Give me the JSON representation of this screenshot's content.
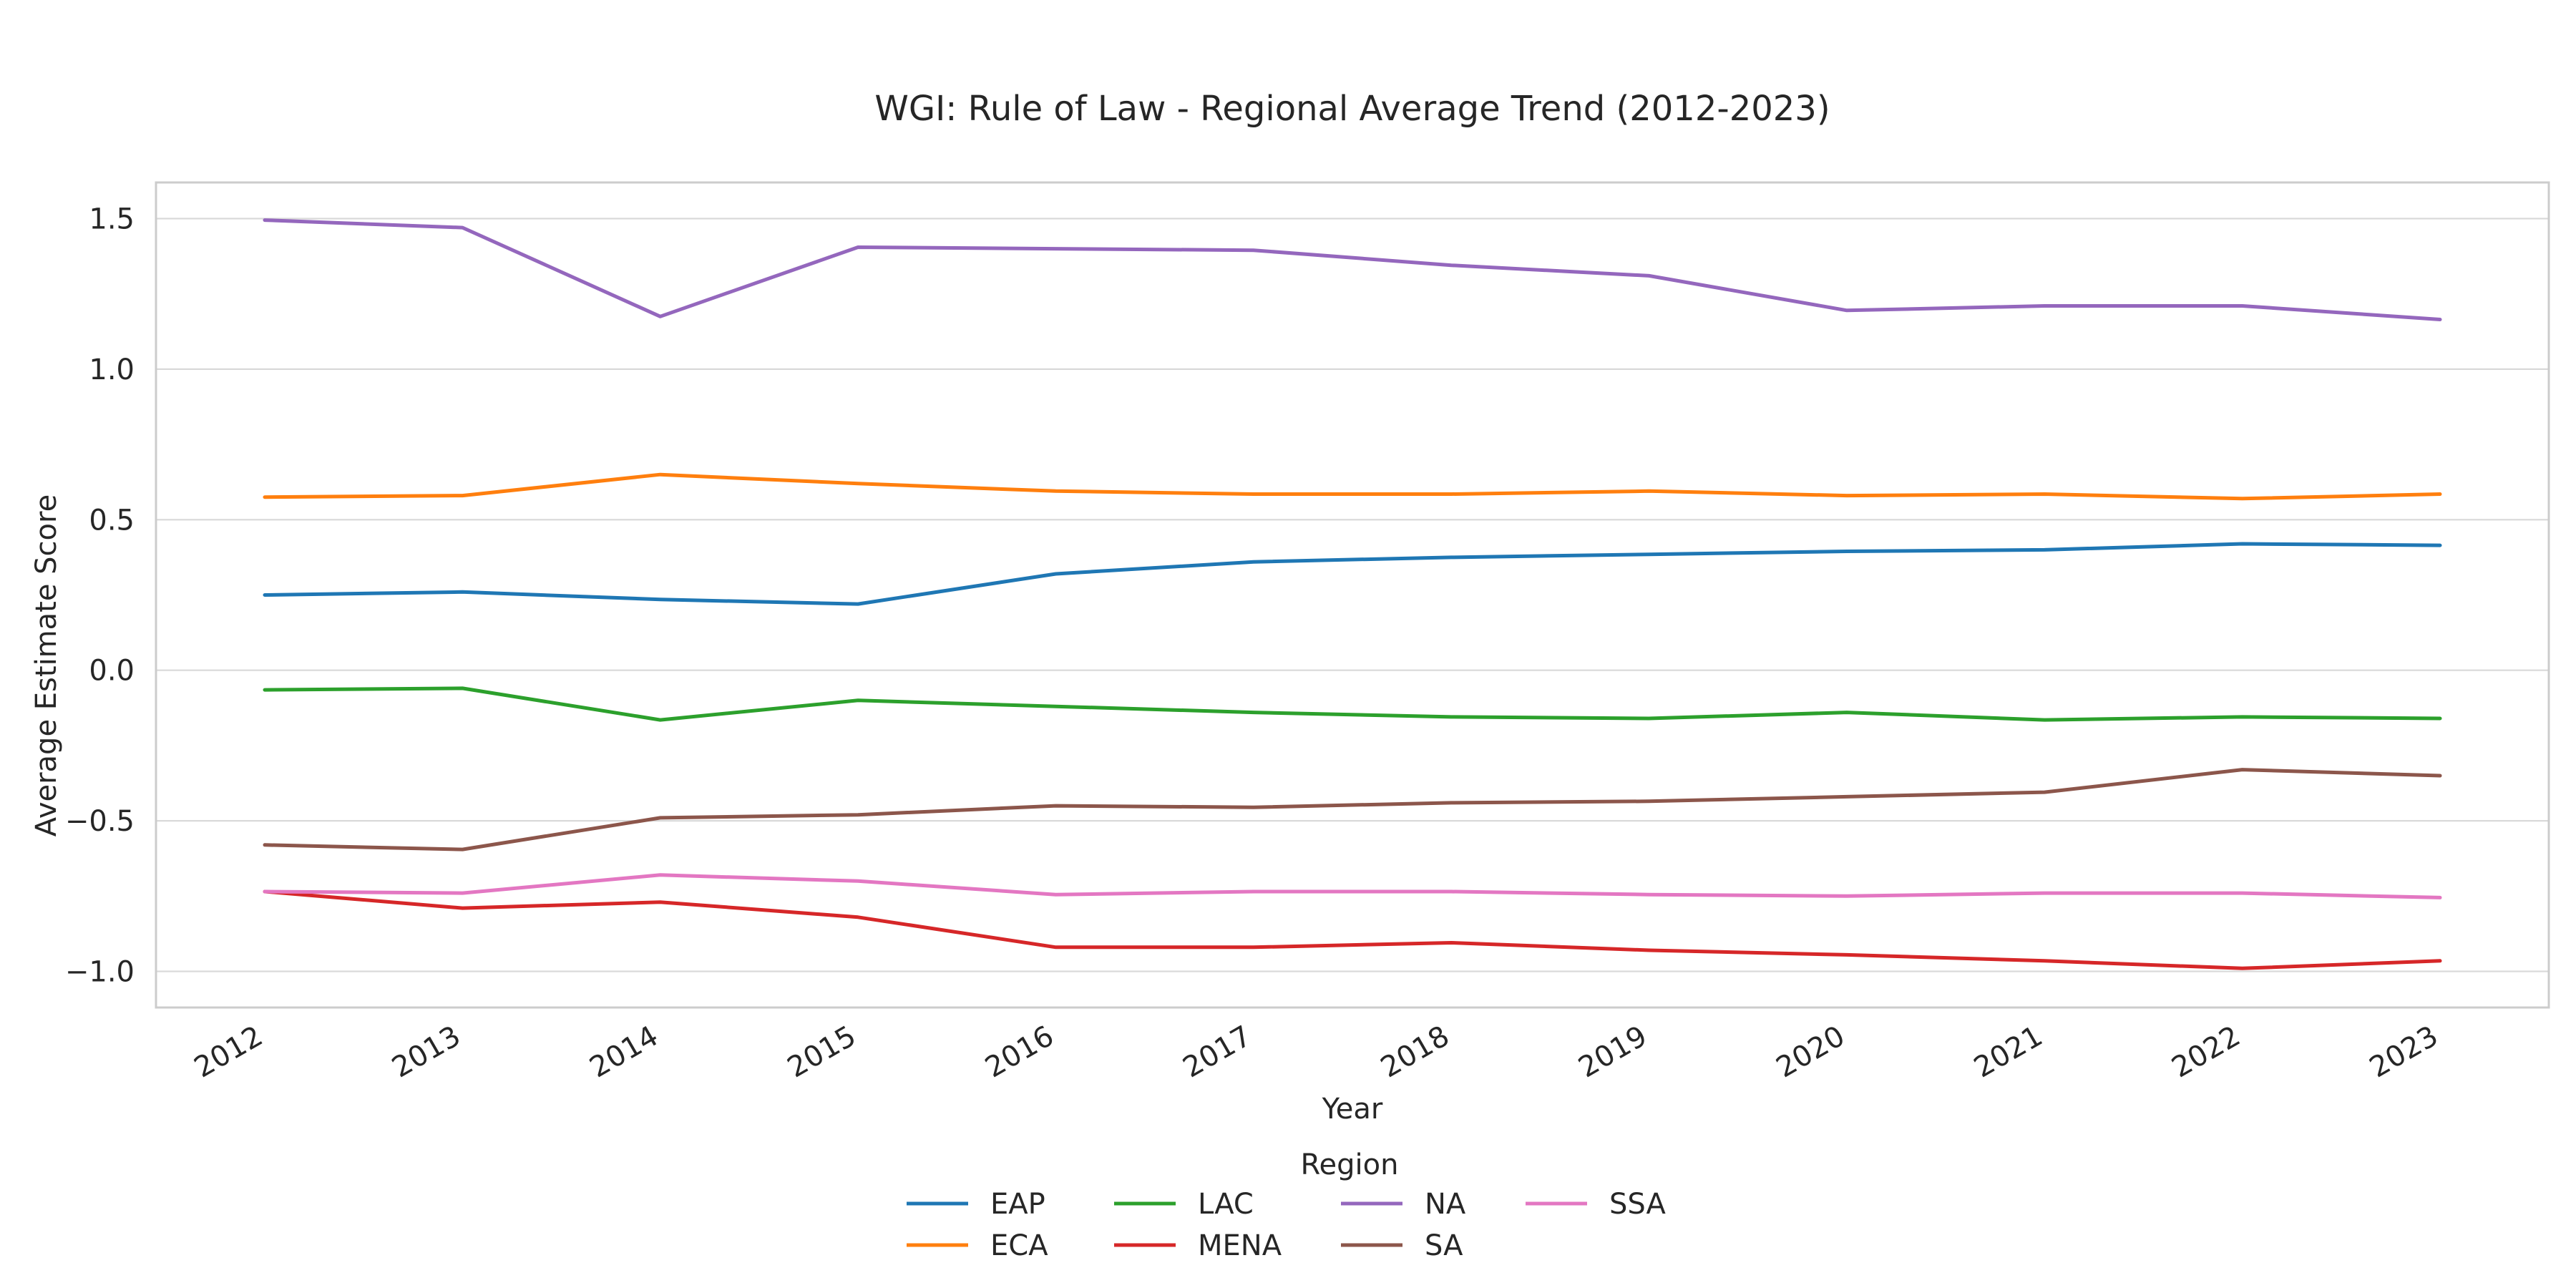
{
  "chart_data": {
    "type": "line",
    "title": "WGI: Rule of Law - Regional Average Trend (2012-2023)",
    "xlabel": "Year",
    "ylabel": "Average Estimate Score",
    "x": [
      2012,
      2013,
      2014,
      2015,
      2016,
      2017,
      2018,
      2019,
      2020,
      2021,
      2022,
      2023
    ],
    "x_tick_labels": [
      "2012",
      "2013",
      "2014",
      "2015",
      "2016",
      "2017",
      "2018",
      "2019",
      "2020",
      "2021",
      "2022",
      "2023"
    ],
    "y_ticks": [
      1.5,
      1.0,
      0.5,
      0.0,
      -0.5,
      -1.0
    ],
    "y_tick_labels": [
      "1.5",
      "1.0",
      "0.5",
      "0.0",
      "−0.5",
      "−1.0"
    ],
    "xlim": [
      2011.45,
      2023.55
    ],
    "ylim": [
      -1.12,
      1.62
    ],
    "grid": true,
    "legend": {
      "title": "Region",
      "placement": "bottom-center",
      "columns": 4
    },
    "series": [
      {
        "name": "EAP",
        "color": "#1f77b4",
        "values": [
          0.25,
          0.26,
          0.235,
          0.22,
          0.32,
          0.36,
          0.375,
          0.385,
          0.395,
          0.4,
          0.42,
          0.415
        ]
      },
      {
        "name": "ECA",
        "color": "#ff7f0e",
        "values": [
          0.575,
          0.58,
          0.65,
          0.62,
          0.595,
          0.585,
          0.585,
          0.595,
          0.58,
          0.585,
          0.57,
          0.585
        ]
      },
      {
        "name": "LAC",
        "color": "#2ca02c",
        "values": [
          -0.065,
          -0.06,
          -0.165,
          -0.1,
          -0.12,
          -0.14,
          -0.155,
          -0.16,
          -0.14,
          -0.165,
          -0.155,
          -0.16
        ]
      },
      {
        "name": "MENA",
        "color": "#d62728",
        "values": [
          -0.735,
          -0.79,
          -0.77,
          -0.82,
          -0.92,
          -0.92,
          -0.905,
          -0.93,
          -0.945,
          -0.965,
          -0.99,
          -0.965
        ]
      },
      {
        "name": "NA",
        "color": "#9467bd",
        "values": [
          1.495,
          1.47,
          1.175,
          1.405,
          1.4,
          1.395,
          1.345,
          1.31,
          1.195,
          1.21,
          1.21,
          1.165
        ]
      },
      {
        "name": "SA",
        "color": "#8c564b",
        "values": [
          -0.58,
          -0.595,
          -0.49,
          -0.48,
          -0.45,
          -0.455,
          -0.44,
          -0.435,
          -0.42,
          -0.405,
          -0.33,
          -0.35
        ]
      },
      {
        "name": "SSA",
        "color": "#e377c2",
        "values": [
          -0.735,
          -0.74,
          -0.68,
          -0.7,
          -0.745,
          -0.735,
          -0.735,
          -0.745,
          -0.75,
          -0.74,
          -0.74,
          -0.755
        ]
      }
    ]
  }
}
